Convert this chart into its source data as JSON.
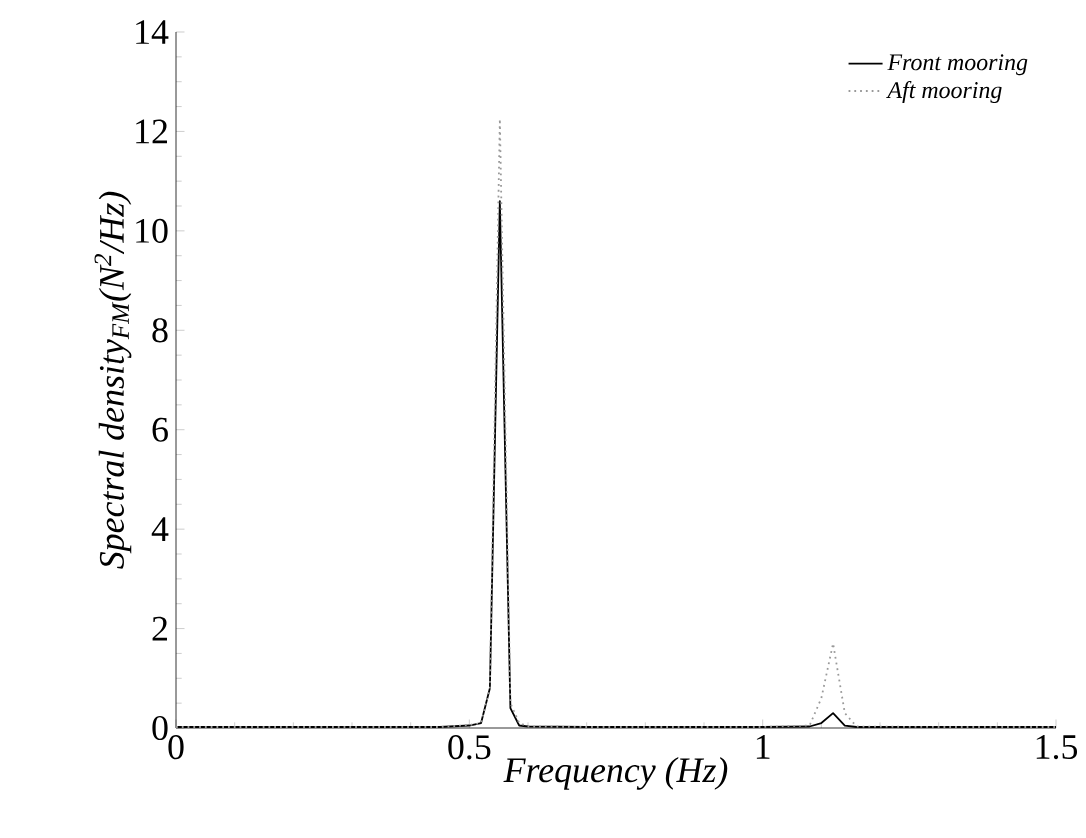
{
  "chart_data": {
    "type": "line",
    "xlabel": "Frequency (Hz)",
    "ylabel": "Spectral density$_{FM}$(N$^{2}$/Hz)",
    "xlim": [
      0,
      1.5
    ],
    "ylim": [
      0,
      14
    ],
    "xticks": [
      0,
      0.5,
      1,
      1.5
    ],
    "yticks": [
      0,
      2,
      4,
      6,
      8,
      10,
      12,
      14
    ],
    "grid": false,
    "legend": "top right",
    "marker": "none",
    "series": [
      {
        "name": "Front mooring",
        "color": "#000000",
        "line_style": "solid",
        "x": [
          0,
          0.45,
          0.5,
          0.52,
          0.535,
          0.552,
          0.57,
          0.585,
          0.6,
          0.7,
          1.0,
          1.08,
          1.1,
          1.12,
          1.14,
          1.16,
          1.3,
          1.5
        ],
        "values": [
          0.02,
          0.02,
          0.05,
          0.1,
          0.8,
          10.6,
          0.4,
          0.05,
          0.03,
          0.02,
          0.02,
          0.03,
          0.1,
          0.3,
          0.05,
          0.02,
          0.02,
          0.02
        ]
      },
      {
        "name": "Aft mooring",
        "color": "#999999",
        "line_style": "dotted",
        "x": [
          0,
          0.45,
          0.5,
          0.52,
          0.535,
          0.552,
          0.57,
          0.585,
          0.6,
          0.7,
          1.0,
          1.08,
          1.1,
          1.12,
          1.14,
          1.16,
          1.3,
          1.5
        ],
        "values": [
          0.02,
          0.02,
          0.06,
          0.1,
          0.8,
          12.25,
          0.5,
          0.1,
          0.03,
          0.02,
          0.02,
          0.05,
          0.6,
          1.7,
          0.3,
          0.03,
          0.02,
          0.02
        ]
      }
    ]
  }
}
